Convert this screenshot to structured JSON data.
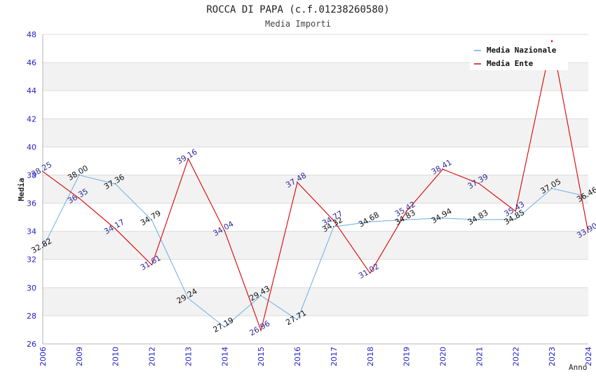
{
  "chart_data": {
    "type": "line",
    "title": "ROCCA DI PAPA (c.f.01238260580)",
    "subtitle": "Media Importi",
    "ylabel": "Media",
    "xlabel": "Anno",
    "categories": [
      "2006",
      "2009",
      "2010",
      "2012",
      "2013",
      "2014",
      "2015",
      "2016",
      "2017",
      "2018",
      "2019",
      "2020",
      "2021",
      "2022",
      "2023",
      "2024"
    ],
    "ylim": [
      26,
      48
    ],
    "yticks": [
      26,
      28,
      30,
      32,
      34,
      36,
      38,
      40,
      42,
      44,
      46,
      48
    ],
    "grid": true,
    "legend_position": "top-right",
    "series": [
      {
        "name": "Media Nazionale",
        "color": "#6aaee8",
        "values": [
          32.82,
          38.0,
          37.36,
          34.79,
          29.24,
          27.19,
          29.43,
          27.71,
          34.32,
          34.68,
          34.83,
          34.94,
          34.83,
          34.85,
          37.05,
          36.46
        ],
        "labels": [
          "32.82",
          "38.00",
          "37.36",
          "34.79",
          "29.24",
          "27.19",
          "29.43",
          "27.71",
          "34.32",
          "34.68",
          "34.83",
          "34.94",
          "34.83",
          "34.85",
          "37.05",
          "36.46"
        ]
      },
      {
        "name": "Media Ente",
        "color": "#dd0000",
        "values": [
          38.25,
          36.35,
          34.17,
          31.61,
          39.16,
          34.04,
          26.96,
          37.48,
          34.77,
          31.02,
          35.42,
          38.41,
          37.39,
          35.43,
          47.6,
          33.9
        ],
        "labels": [
          "38.25",
          "36.35",
          "34.17",
          "31.61",
          "39.16",
          "34.04",
          "26.96",
          "37.48",
          "34.77",
          "31.02",
          "35.42",
          "38.41",
          "37.39",
          "35.43",
          "",
          "33.90"
        ]
      }
    ]
  }
}
